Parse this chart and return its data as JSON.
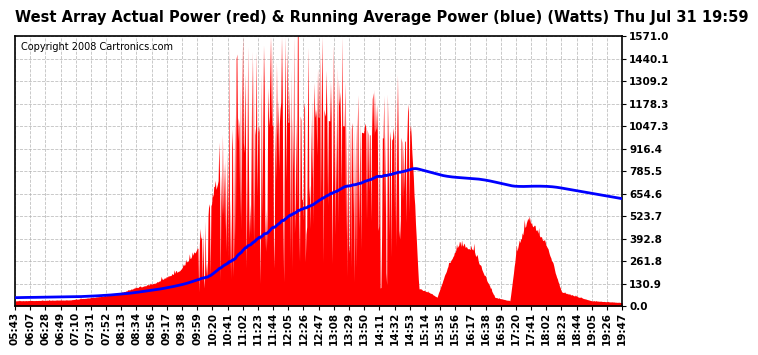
{
  "title": "West Array Actual Power (red) & Running Average Power (blue) (Watts) Thu Jul 31 19:59",
  "copyright": "Copyright 2008 Cartronics.com",
  "background_color": "#ffffff",
  "plot_bg_color": "#ffffff",
  "grid_color": "#b0b0b0",
  "ytick_labels": [
    "0.0",
    "130.9",
    "261.8",
    "392.8",
    "523.7",
    "654.6",
    "785.5",
    "916.4",
    "1047.3",
    "1178.3",
    "1309.2",
    "1440.1",
    "1571.0"
  ],
  "ytick_values": [
    0.0,
    130.9,
    261.8,
    392.8,
    523.7,
    654.6,
    785.5,
    916.4,
    1047.3,
    1178.3,
    1309.2,
    1440.1,
    1571.0
  ],
  "ymax": 1571.0,
  "xtick_labels": [
    "05:43",
    "06:07",
    "06:28",
    "06:49",
    "07:10",
    "07:31",
    "07:52",
    "08:13",
    "08:34",
    "08:56",
    "09:17",
    "09:38",
    "09:59",
    "10:20",
    "10:41",
    "11:02",
    "11:23",
    "11:44",
    "12:05",
    "12:26",
    "12:47",
    "13:08",
    "13:29",
    "13:50",
    "14:11",
    "14:32",
    "14:53",
    "15:14",
    "15:35",
    "15:56",
    "16:17",
    "16:38",
    "16:59",
    "17:20",
    "17:41",
    "18:02",
    "18:23",
    "18:44",
    "19:05",
    "19:26",
    "19:47"
  ],
  "red_color": "#ff0000",
  "blue_color": "#0000ff",
  "title_fontsize": 10.5,
  "tick_fontsize": 7.5,
  "copyright_fontsize": 7
}
